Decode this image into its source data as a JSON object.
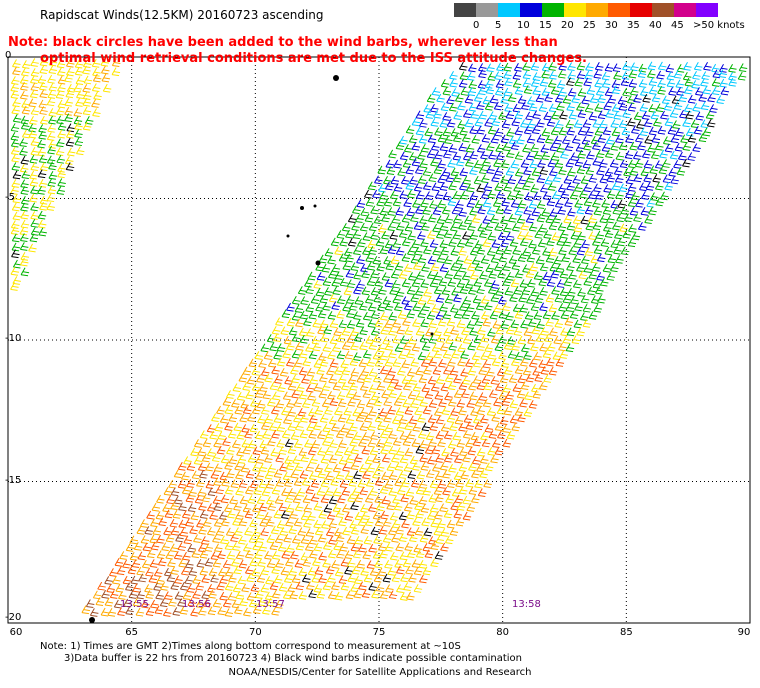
{
  "title": "Rapidscat Winds(12.5KM) 20160723 ascending",
  "note": {
    "line1": "Note: black circles have been added to the wind barbs, wherever less than",
    "line2": "optimal wind retrieval conditions are met due to the ISS attitude changes."
  },
  "legend": {
    "colors": [
      "#444444",
      "#999999",
      "#00c8ff",
      "#0000dc",
      "#00b400",
      "#ffe600",
      "#ffaa00",
      "#ff5a00",
      "#e60000",
      "#a05028",
      "#d2008c",
      "#8200ff"
    ],
    "labels": [
      "0",
      "5",
      "10",
      "15",
      "20",
      "25",
      "30",
      "35",
      "40",
      "45",
      ">50 knots"
    ]
  },
  "axes": {
    "lat_labels": [
      "0",
      "-5",
      "-10",
      "-15",
      "-20"
    ],
    "lon_labels": [
      "60",
      "65",
      "70",
      "75",
      "80",
      "85",
      "90"
    ]
  },
  "pass_times": [
    "13:55",
    "13:56",
    "13:57",
    "13:58"
  ],
  "footer": {
    "line1": "Note: 1) Times are GMT 2)Times along bottom correspond to measurement at ~10S",
    "line2": "3)Data buffer is 22 hrs from 20160723 4) Black wind barbs indicate possible contamination",
    "credit": "NOAA/NESDIS/Center for Satellite Applications and Research"
  }
}
